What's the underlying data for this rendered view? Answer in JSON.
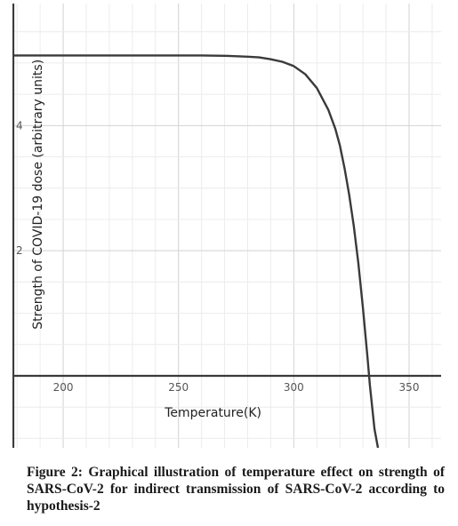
{
  "chart_data": {
    "type": "line",
    "xlabel": "Temperature(K)",
    "ylabel": "Strength of COVID-19 dose (arbitrary units)",
    "xlim": [
      178,
      350
    ],
    "ylim": [
      -1.15,
      5.95
    ],
    "x_ticks": [
      "200",
      "250",
      "300",
      "350"
    ],
    "x_tick_values": [
      200,
      250,
      300,
      350
    ],
    "y_ticks": [
      "4",
      "2"
    ],
    "y_tick_values": [
      4,
      2
    ],
    "grid": true,
    "series": [
      {
        "color": "#3a3a3a",
        "x": [
          178,
          200,
          220,
          240,
          260,
          270,
          280,
          285,
          290,
          295,
          300,
          305,
          310,
          315,
          318,
          320,
          322,
          324,
          326,
          328,
          330,
          332,
          333,
          335,
          336.5
        ],
        "y": [
          5.12,
          5.12,
          5.12,
          5.12,
          5.12,
          5.115,
          5.1,
          5.09,
          5.06,
          5.02,
          4.95,
          4.82,
          4.6,
          4.25,
          3.95,
          3.68,
          3.32,
          2.9,
          2.4,
          1.8,
          1.08,
          0.28,
          -0.15,
          -0.85,
          -1.15
        ]
      }
    ]
  },
  "caption": "Figure 2: Graphical illustration of temperature effect on strength of SARS-CoV-2 for indirect transmission of SARS-CoV-2 according to hypothesis-2"
}
